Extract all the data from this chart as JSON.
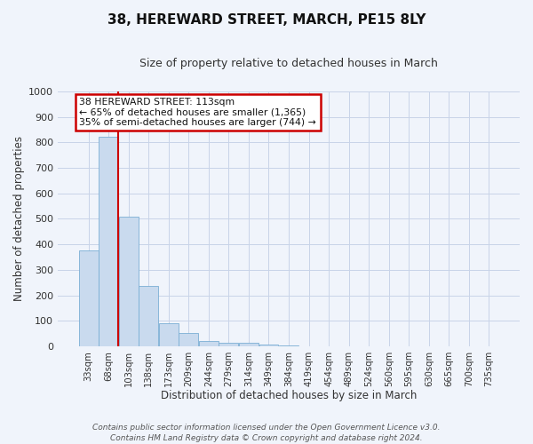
{
  "title": "38, HEREWARD STREET, MARCH, PE15 8LY",
  "subtitle": "Size of property relative to detached houses in March",
  "xlabel": "Distribution of detached houses by size in March",
  "ylabel": "Number of detached properties",
  "bar_color": "#c9daee",
  "bar_edge_color": "#7aafd4",
  "bar_heights": [
    375,
    820,
    510,
    238,
    92,
    52,
    20,
    15,
    14,
    7,
    5,
    0,
    0,
    0,
    0,
    0,
    0,
    0,
    0,
    0,
    0
  ],
  "categories": [
    "33sqm",
    "68sqm",
    "103sqm",
    "138sqm",
    "173sqm",
    "209sqm",
    "244sqm",
    "279sqm",
    "314sqm",
    "349sqm",
    "384sqm",
    "419sqm",
    "454sqm",
    "489sqm",
    "524sqm",
    "560sqm",
    "595sqm",
    "630sqm",
    "665sqm",
    "700sqm",
    "735sqm"
  ],
  "vline_x": 1.5,
  "vline_color": "#cc0000",
  "annotation_text": "38 HEREWARD STREET: 113sqm\n← 65% of detached houses are smaller (1,365)\n35% of semi-detached houses are larger (744) →",
  "annotation_box_color": "#ffffff",
  "annotation_box_edge_color": "#cc0000",
  "ylim": [
    0,
    1000
  ],
  "yticks": [
    0,
    100,
    200,
    300,
    400,
    500,
    600,
    700,
    800,
    900,
    1000
  ],
  "footer_line1": "Contains HM Land Registry data © Crown copyright and database right 2024.",
  "footer_line2": "Contains public sector information licensed under the Open Government Licence v3.0.",
  "bg_color": "#f0f4fb",
  "grid_color": "#c8d4e8",
  "title_fontsize": 11,
  "subtitle_fontsize": 9
}
